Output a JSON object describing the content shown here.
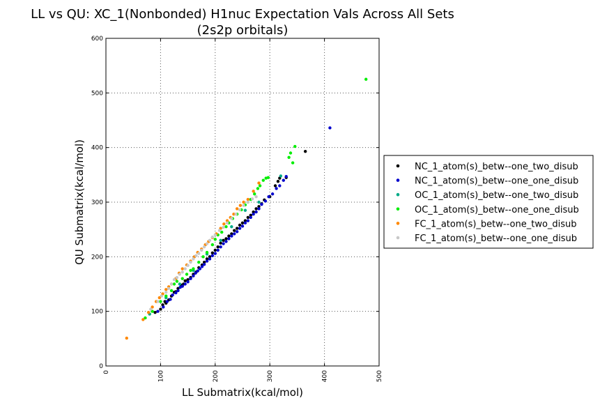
{
  "chart_data": {
    "type": "scatter",
    "title": "LL vs QU: XC_1(Nonbonded) H1nuc Expectation Vals Across All Sets",
    "subtitle": "(2s2p orbitals)",
    "xlabel": "LL Submatrix(kcal/mol)",
    "ylabel": "QU Submatrix(kcal/mol)",
    "xlim": [
      0,
      500
    ],
    "ylim": [
      0,
      600
    ],
    "xticks": [
      0,
      100,
      200,
      300,
      400,
      500
    ],
    "yticks": [
      0,
      100,
      200,
      300,
      400,
      500,
      600
    ],
    "grid": true,
    "legend_position": "right-outside",
    "series": [
      {
        "name": "NC_1_atom(s)_betw--one_two_disub",
        "color": "#000000",
        "points": [
          [
            90,
            98
          ],
          [
            100,
            104
          ],
          [
            104,
            112
          ],
          [
            108,
            118
          ],
          [
            110,
            115
          ],
          [
            115,
            121
          ],
          [
            120,
            128
          ],
          [
            125,
            135
          ],
          [
            128,
            136
          ],
          [
            132,
            142
          ],
          [
            138,
            148
          ],
          [
            142,
            150
          ],
          [
            145,
            156
          ],
          [
            150,
            158
          ],
          [
            155,
            162
          ],
          [
            160,
            168
          ],
          [
            165,
            172
          ],
          [
            170,
            180
          ],
          [
            176,
            185
          ],
          [
            180,
            190
          ],
          [
            185,
            196
          ],
          [
            190,
            200
          ],
          [
            195,
            207
          ],
          [
            200,
            212
          ],
          [
            205,
            218
          ],
          [
            210,
            225
          ],
          [
            215,
            230
          ],
          [
            220,
            233
          ],
          [
            225,
            238
          ],
          [
            230,
            242
          ],
          [
            235,
            248
          ],
          [
            240,
            252
          ],
          [
            245,
            258
          ],
          [
            250,
            262
          ],
          [
            255,
            266
          ],
          [
            260,
            272
          ],
          [
            265,
            276
          ],
          [
            270,
            282
          ],
          [
            275,
            288
          ],
          [
            280,
            292
          ],
          [
            285,
            297
          ],
          [
            290,
            304
          ],
          [
            300,
            310
          ],
          [
            310,
            330
          ],
          [
            315,
            338
          ],
          [
            318,
            344
          ],
          [
            330,
            345
          ],
          [
            365,
            393
          ]
        ]
      },
      {
        "name": "NC_1_atom(s)_betw--one_one_disub",
        "color": "#0000cc",
        "points": [
          [
            95,
            100
          ],
          [
            105,
            108
          ],
          [
            112,
            118
          ],
          [
            118,
            122
          ],
          [
            122,
            130
          ],
          [
            128,
            134
          ],
          [
            132,
            138
          ],
          [
            136,
            144
          ],
          [
            140,
            146
          ],
          [
            145,
            150
          ],
          [
            150,
            154
          ],
          [
            155,
            160
          ],
          [
            160,
            165
          ],
          [
            164,
            170
          ],
          [
            168,
            174
          ],
          [
            172,
            178
          ],
          [
            176,
            182
          ],
          [
            180,
            186
          ],
          [
            185,
            192
          ],
          [
            190,
            196
          ],
          [
            195,
            202
          ],
          [
            200,
            206
          ],
          [
            205,
            212
          ],
          [
            210,
            218
          ],
          [
            215,
            224
          ],
          [
            220,
            228
          ],
          [
            225,
            233
          ],
          [
            230,
            238
          ],
          [
            235,
            242
          ],
          [
            240,
            246
          ],
          [
            245,
            252
          ],
          [
            250,
            256
          ],
          [
            255,
            262
          ],
          [
            260,
            266
          ],
          [
            265,
            272
          ],
          [
            270,
            278
          ],
          [
            275,
            282
          ],
          [
            280,
            288
          ],
          [
            285,
            296
          ],
          [
            292,
            302
          ],
          [
            298,
            310
          ],
          [
            305,
            315
          ],
          [
            312,
            325
          ],
          [
            318,
            330
          ],
          [
            325,
            340
          ],
          [
            330,
            347
          ],
          [
            410,
            436
          ]
        ]
      },
      {
        "name": "OC_1_atom(s)_betw--one_two_disub",
        "color": "#00aa88",
        "points": [
          [
            80,
            95
          ],
          [
            110,
            125
          ],
          [
            135,
            150
          ],
          [
            160,
            175
          ],
          [
            185,
            205
          ],
          [
            210,
            230
          ],
          [
            230,
            255
          ],
          [
            255,
            285
          ],
          [
            280,
            300
          ],
          [
            320,
            348
          ]
        ]
      },
      {
        "name": "OC_1_atom(s)_betw--one_one_disub",
        "color": "#00ee00",
        "points": [
          [
            72,
            88
          ],
          [
            85,
            100
          ],
          [
            100,
            118
          ],
          [
            110,
            128
          ],
          [
            120,
            138
          ],
          [
            125,
            150
          ],
          [
            130,
            155
          ],
          [
            140,
            160
          ],
          [
            148,
            168
          ],
          [
            155,
            175
          ],
          [
            160,
            178
          ],
          [
            170,
            190
          ],
          [
            178,
            200
          ],
          [
            185,
            208
          ],
          [
            195,
            222
          ],
          [
            200,
            232
          ],
          [
            205,
            240
          ],
          [
            212,
            245
          ],
          [
            220,
            255
          ],
          [
            225,
            262
          ],
          [
            232,
            270
          ],
          [
            240,
            278
          ],
          [
            248,
            286
          ],
          [
            255,
            295
          ],
          [
            260,
            300
          ],
          [
            265,
            305
          ],
          [
            272,
            315
          ],
          [
            278,
            325
          ],
          [
            282,
            330
          ],
          [
            288,
            340
          ],
          [
            293,
            344
          ],
          [
            297,
            345
          ],
          [
            335,
            382
          ],
          [
            338,
            390
          ],
          [
            342,
            372
          ],
          [
            346,
            402
          ],
          [
            476,
            525
          ]
        ]
      },
      {
        "name": "FC_1_atom(s)_betw--one_two_disub",
        "color": "#ff8800",
        "points": [
          [
            38,
            51
          ],
          [
            68,
            85
          ],
          [
            78,
            98
          ],
          [
            85,
            108
          ],
          [
            92,
            118
          ],
          [
            98,
            125
          ],
          [
            104,
            132
          ],
          [
            110,
            140
          ],
          [
            115,
            145
          ],
          [
            120,
            150
          ],
          [
            128,
            160
          ],
          [
            134,
            170
          ],
          [
            140,
            178
          ],
          [
            148,
            185
          ],
          [
            155,
            192
          ],
          [
            162,
            200
          ],
          [
            168,
            208
          ],
          [
            175,
            214
          ],
          [
            182,
            222
          ],
          [
            188,
            228
          ],
          [
            195,
            235
          ],
          [
            202,
            242
          ],
          [
            210,
            252
          ],
          [
            216,
            260
          ],
          [
            222,
            266
          ],
          [
            228,
            272
          ],
          [
            234,
            278
          ],
          [
            240,
            288
          ],
          [
            246,
            294
          ],
          [
            252,
            300
          ],
          [
            260,
            305
          ],
          [
            270,
            320
          ],
          [
            280,
            335
          ]
        ]
      },
      {
        "name": "FC_1_atom(s)_betw--one_one_disub",
        "color": "#c8c8c8",
        "points": [
          [
            82,
            104
          ],
          [
            95,
            118
          ],
          [
            102,
            128
          ],
          [
            110,
            135
          ],
          [
            115,
            142
          ],
          [
            120,
            150
          ],
          [
            125,
            158
          ],
          [
            130,
            162
          ],
          [
            135,
            168
          ],
          [
            140,
            172
          ],
          [
            145,
            178
          ],
          [
            150,
            184
          ],
          [
            155,
            190
          ],
          [
            160,
            196
          ],
          [
            165,
            202
          ],
          [
            170,
            206
          ],
          [
            175,
            212
          ],
          [
            180,
            218
          ],
          [
            185,
            224
          ],
          [
            190,
            230
          ],
          [
            195,
            236
          ],
          [
            200,
            240
          ],
          [
            208,
            248
          ],
          [
            215,
            254
          ],
          [
            222,
            262
          ],
          [
            230,
            270
          ],
          [
            238,
            278
          ],
          [
            245,
            286
          ],
          [
            252,
            294
          ],
          [
            260,
            300
          ],
          [
            268,
            306
          ],
          [
            275,
            310
          ]
        ]
      }
    ]
  }
}
